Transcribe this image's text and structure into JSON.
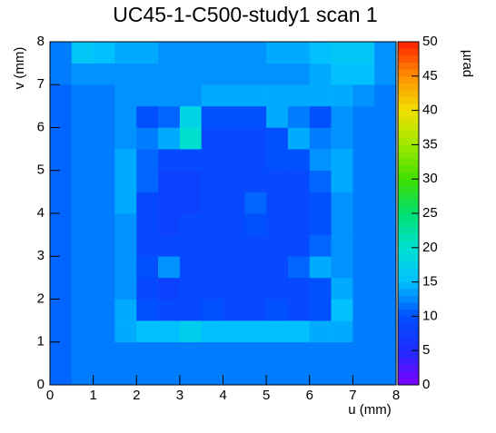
{
  "chart_data": {
    "type": "heatmap",
    "title": "UC45-1-C500-study1 scan 1",
    "x_label": "u (mm)",
    "y_label": "v (mm)",
    "z_label": "µrad",
    "xbins": [
      0,
      0.5,
      1,
      1.5,
      2,
      2.5,
      3,
      3.5,
      4,
      4.5,
      5,
      5.5,
      6,
      6.5,
      7,
      7.5,
      8
    ],
    "ybins": [
      0,
      0.5,
      1,
      1.5,
      2,
      2.5,
      3,
      3.5,
      4,
      4.5,
      5,
      5.5,
      6,
      6.5,
      7,
      7.5,
      8
    ],
    "z": [
      [
        11,
        12,
        12,
        12,
        12,
        12,
        12,
        12,
        12,
        12,
        12,
        12,
        12,
        12,
        12,
        12
      ],
      [
        11,
        12,
        12,
        12,
        12,
        12,
        12,
        12,
        12,
        12,
        12,
        12,
        12,
        12,
        12,
        12
      ],
      [
        11,
        12,
        12,
        14,
        15,
        15,
        17,
        15,
        15,
        15,
        15,
        15,
        14,
        14,
        12,
        12
      ],
      [
        11,
        12,
        12,
        14,
        10,
        9,
        9,
        10,
        9,
        9,
        10,
        9,
        10,
        15,
        12,
        12
      ],
      [
        11,
        12,
        12,
        13,
        9,
        8,
        9,
        9,
        9,
        9,
        9,
        9,
        10,
        14,
        12,
        12
      ],
      [
        11,
        12,
        12,
        13,
        10,
        13,
        9,
        9,
        9,
        9,
        9,
        11,
        14,
        13,
        12,
        12
      ],
      [
        11,
        12,
        12,
        13,
        9,
        9,
        9,
        9,
        9,
        9,
        9,
        9,
        11,
        13,
        12,
        12
      ],
      [
        11,
        12,
        12,
        13,
        9,
        8,
        9,
        9,
        9,
        10,
        9,
        9,
        10,
        13,
        12,
        12
      ],
      [
        11,
        12,
        12,
        14,
        9,
        8,
        8,
        9,
        9,
        11,
        9,
        9,
        10,
        13,
        12,
        12
      ],
      [
        11,
        12,
        12,
        14,
        11,
        8,
        8,
        9,
        9,
        9,
        9,
        9,
        11,
        14,
        12,
        12
      ],
      [
        11,
        12,
        12,
        14,
        11,
        9,
        9,
        9,
        9,
        9,
        10,
        10,
        13,
        14,
        12,
        12
      ],
      [
        11,
        12,
        12,
        13,
        12,
        14,
        20,
        9,
        9,
        9,
        10,
        14,
        12,
        13,
        12,
        12
      ],
      [
        11,
        12,
        12,
        13,
        10,
        11,
        18,
        10,
        10,
        10,
        14,
        12,
        10,
        13,
        12,
        12
      ],
      [
        11,
        12,
        12,
        13,
        13,
        13,
        13,
        14,
        14,
        14,
        14,
        14,
        14,
        14,
        13,
        12
      ],
      [
        12,
        13,
        13,
        13,
        13,
        13,
        13,
        13,
        13,
        13,
        13,
        13,
        14,
        15,
        15,
        13
      ],
      [
        12,
        16,
        15,
        14,
        14,
        13,
        13,
        13,
        13,
        13,
        14,
        14,
        15,
        16,
        16,
        13
      ]
    ],
    "xlim": [
      0,
      8
    ],
    "xticks": [
      0,
      1,
      2,
      3,
      4,
      5,
      6,
      7,
      8
    ],
    "ylim": [
      0,
      8
    ],
    "yticks": [
      0,
      1,
      2,
      3,
      4,
      5,
      6,
      7,
      8
    ],
    "zlim": [
      0,
      50
    ],
    "zticks": [
      0,
      5,
      10,
      15,
      20,
      25,
      30,
      35,
      40,
      45,
      50
    ],
    "colorscale": [
      "#7f00ff",
      "#1e2cff",
      "#0050ff",
      "#00c0ff",
      "#00e0d0",
      "#00e070",
      "#40e000",
      "#a0e800",
      "#f0e000",
      "#ff9000",
      "#ff2000"
    ]
  }
}
